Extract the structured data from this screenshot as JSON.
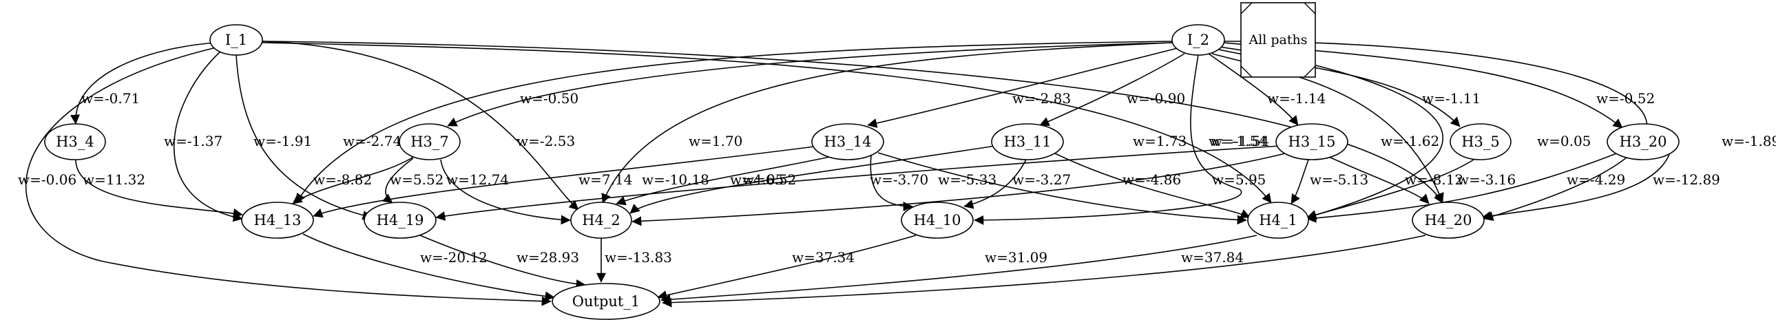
{
  "legend": {
    "label": "All paths"
  },
  "nodes": [
    {
      "id": "I_1",
      "label": "I_1"
    },
    {
      "id": "I_2",
      "label": "I_2"
    },
    {
      "id": "H3_4",
      "label": "H3_4"
    },
    {
      "id": "H3_7",
      "label": "H3_7"
    },
    {
      "id": "H3_14",
      "label": "H3_14"
    },
    {
      "id": "H3_11",
      "label": "H3_11"
    },
    {
      "id": "H3_15",
      "label": "H3_15"
    },
    {
      "id": "H3_5",
      "label": "H3_5"
    },
    {
      "id": "H3_20",
      "label": "H3_20"
    },
    {
      "id": "H4_13",
      "label": "H4_13"
    },
    {
      "id": "H4_19",
      "label": "H4_19"
    },
    {
      "id": "H4_2",
      "label": "H4_2"
    },
    {
      "id": "H4_10",
      "label": "H4_10"
    },
    {
      "id": "H4_1",
      "label": "H4_1"
    },
    {
      "id": "H4_20",
      "label": "H4_20"
    },
    {
      "id": "Output_1",
      "label": "Output_1"
    }
  ],
  "edges": [
    {
      "from": "I_1",
      "to": "H3_4",
      "label": "w=-0.71"
    },
    {
      "from": "I_1",
      "to": "H4_13",
      "label": "w=-1.37"
    },
    {
      "from": "I_1",
      "to": "H4_19",
      "label": "w=-1.91"
    },
    {
      "from": "I_1",
      "to": "H4_2",
      "label": "w=-2.53"
    },
    {
      "from": "I_1",
      "to": "Output_1",
      "label": "w=-0.06"
    },
    {
      "from": "I_1",
      "to": "H4_1",
      "label": "w=1.73"
    },
    {
      "from": "I_1",
      "to": "H4_20",
      "label": "w=-1.54"
    },
    {
      "from": "H3_4",
      "to": "H4_13",
      "label": "w=11.32"
    },
    {
      "from": "H3_7",
      "to": "H4_13",
      "label": "w=-8.82"
    },
    {
      "from": "H3_7",
      "to": "H4_19",
      "label": "w=5.52"
    },
    {
      "from": "H3_7",
      "to": "H4_2",
      "label": "w=12.74"
    },
    {
      "from": "I_2",
      "to": "H3_7",
      "label": "w=-0.50"
    },
    {
      "from": "I_2",
      "to": "H4_13",
      "label": "w=-2.74"
    },
    {
      "from": "I_2",
      "to": "H4_2",
      "label": "w=1.70"
    },
    {
      "from": "I_2",
      "to": "H3_14",
      "label": "w=-2.83"
    },
    {
      "from": "I_2",
      "to": "H3_11",
      "label": "w=-0.90"
    },
    {
      "from": "I_2",
      "to": "H4_10",
      "label": "w=-1.54"
    },
    {
      "from": "I_2",
      "to": "H3_15",
      "label": "w=-1.14"
    },
    {
      "from": "I_2",
      "to": "H4_20",
      "label": "w=-1.62"
    },
    {
      "from": "I_2",
      "to": "H3_5",
      "label": "w=-1.11"
    },
    {
      "from": "I_2",
      "to": "H4_1",
      "label": "w=0.05"
    },
    {
      "from": "I_2",
      "to": "H3_20",
      "label": "w=-0.52"
    },
    {
      "from": "I_2",
      "to": "H4_20",
      "label": "w=-1.89"
    },
    {
      "from": "H3_14",
      "to": "H4_13",
      "label": "w=7.14"
    },
    {
      "from": "H3_14",
      "to": "H4_2",
      "label": "w=4.05"
    },
    {
      "from": "H3_14",
      "to": "H4_10",
      "label": "w=-3.70"
    },
    {
      "from": "H3_14",
      "to": "H4_1",
      "label": "w=-5.33"
    },
    {
      "from": "H3_11",
      "to": "H4_2",
      "label": "w=6.52"
    },
    {
      "from": "H3_11",
      "to": "H4_10",
      "label": "w=-3.27"
    },
    {
      "from": "H3_11",
      "to": "H4_1",
      "label": "w=-4.86"
    },
    {
      "from": "H3_15",
      "to": "H4_19",
      "label": "w=-10.18"
    },
    {
      "from": "H3_15",
      "to": "H4_2",
      "label": "w=5.95"
    },
    {
      "from": "H3_15",
      "to": "H4_1",
      "label": "w=-5.13"
    },
    {
      "from": "H3_15",
      "to": "H4_20",
      "label": "w=-8.12"
    },
    {
      "from": "H3_5",
      "to": "H4_1",
      "label": "w=-3.16"
    },
    {
      "from": "H3_20",
      "to": "H4_1",
      "label": "w=-4.29"
    },
    {
      "from": "H3_20",
      "to": "H4_20",
      "label": "w=-12.89"
    },
    {
      "from": "H4_13",
      "to": "Output_1",
      "label": "w=-20.12"
    },
    {
      "from": "H4_19",
      "to": "Output_1",
      "label": "w=28.93"
    },
    {
      "from": "H4_2",
      "to": "Output_1",
      "label": "w=-13.83"
    },
    {
      "from": "H4_10",
      "to": "Output_1",
      "label": "w=37.34"
    },
    {
      "from": "H4_1",
      "to": "Output_1",
      "label": "w=31.09"
    },
    {
      "from": "H4_20",
      "to": "Output_1",
      "label": "w=37.84"
    }
  ]
}
